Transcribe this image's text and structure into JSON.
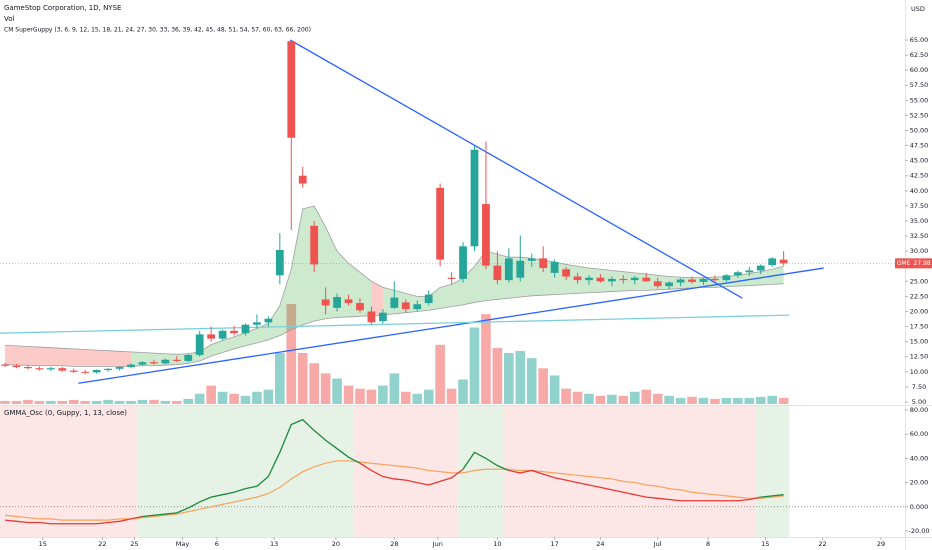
{
  "chart_data": [
    {
      "type": "candlestick",
      "title": "GameStop Corporation, 1D, NYSE",
      "subtitle": "Vol",
      "indicator": "CM SuperGuppy (3, 6, 9, 12, 15, 18, 21, 24, 27, 30, 33, 36, 39, 42, 45, 48, 51, 54, 57, 60, 63, 66, 200)",
      "currency": "USD",
      "symbol": "GME",
      "up_color": "#26a69a",
      "down_color": "#ef5350",
      "ribbon_up_color": "#4caf50",
      "ribbon_down_color": "#f44336",
      "xlim": [
        -0.44,
        78.6
      ],
      "xticks": [
        {
          "value": 3.3,
          "label": "15"
        },
        {
          "value": 8.5,
          "label": "22"
        },
        {
          "value": 11.3,
          "label": "25"
        },
        {
          "value": 15.5,
          "label": "May"
        },
        {
          "value": 18.5,
          "label": "6"
        },
        {
          "value": 23.5,
          "label": "13"
        },
        {
          "value": 28.9,
          "label": "20"
        },
        {
          "value": 34,
          "label": "28"
        },
        {
          "value": 37.8,
          "label": "Jun"
        },
        {
          "value": 43,
          "label": "10"
        },
        {
          "value": 48,
          "label": "17"
        },
        {
          "value": 52,
          "label": "24"
        },
        {
          "value": 57,
          "label": "Jul"
        },
        {
          "value": 61.4,
          "label": "8"
        },
        {
          "value": 66.4,
          "label": "15"
        },
        {
          "value": 71.4,
          "label": "22"
        },
        {
          "value": 76.5,
          "label": "29"
        }
      ],
      "ylim": [
        4.5,
        71.63
      ],
      "yticks": [
        {
          "value": 5,
          "label": "5.00"
        },
        {
          "value": 7.5,
          "label": "7.50"
        },
        {
          "value": 10,
          "label": "10.00"
        },
        {
          "value": 12.5,
          "label": "12.50"
        },
        {
          "value": 15,
          "label": "15.00"
        },
        {
          "value": 17.5,
          "label": "17.50"
        },
        {
          "value": 20,
          "label": "20.00"
        },
        {
          "value": 22.5,
          "label": "22.50"
        },
        {
          "value": 25,
          "label": "25.00"
        },
        {
          "value": 27.5,
          "label": "27.50"
        },
        {
          "value": 30,
          "label": "30.00"
        },
        {
          "value": 32.5,
          "label": "32.50"
        },
        {
          "value": 35,
          "label": "35.00"
        },
        {
          "value": 37.5,
          "label": "37.50"
        },
        {
          "value": 40,
          "label": "40.00"
        },
        {
          "value": 42.5,
          "label": "42.50"
        },
        {
          "value": 45,
          "label": "45.00"
        },
        {
          "value": 47.5,
          "label": "47.50"
        },
        {
          "value": 50,
          "label": "50.00"
        },
        {
          "value": 52.5,
          "label": "52.50"
        },
        {
          "value": 55,
          "label": "55.00"
        },
        {
          "value": 57.5,
          "label": "57.50"
        },
        {
          "value": 60,
          "label": "60.00"
        },
        {
          "value": 62.5,
          "label": "62.50"
        },
        {
          "value": 65,
          "label": "65.00"
        }
      ],
      "open": [
        11.2,
        11.0,
        10.8,
        10.6,
        10.4,
        10.6,
        10.2,
        10.0,
        9.9,
        10.3,
        10.5,
        10.8,
        11.2,
        11.6,
        11.4,
        12.0,
        11.8,
        12.8,
        16.2,
        15.5,
        16.8,
        16.4,
        17.8,
        18.2,
        26.0,
        64.8,
        42.5,
        34.2,
        22.0,
        20.6,
        22.0,
        21.4,
        20.0,
        18.4,
        20.6,
        21.5,
        20.4,
        21.4,
        40.5,
        25.6,
        25.4,
        30.8,
        37.8,
        27.6,
        25.2,
        25.6,
        28.4,
        28.8,
        26.4,
        27.0,
        25.8,
        25.2,
        25.6,
        25.0,
        25.4,
        25.2,
        25.6,
        25.0,
        24.2,
        24.8,
        25.3,
        24.9,
        25.4,
        25.2,
        26.0,
        26.5,
        26.8,
        27.7,
        28.6
      ],
      "high": [
        11.5,
        11.3,
        11.1,
        10.9,
        10.8,
        10.8,
        10.5,
        10.3,
        10.4,
        10.6,
        10.9,
        11.4,
        11.8,
        12.0,
        12.2,
        12.6,
        13.0,
        16.8,
        17.5,
        17.0,
        17.6,
        18.0,
        19.5,
        19.2,
        33.0,
        65.0,
        44.0,
        35.0,
        24.0,
        23.0,
        22.8,
        22.2,
        20.8,
        20.4,
        25.0,
        22.0,
        21.8,
        23.5,
        41.2,
        26.5,
        31.5,
        47.5,
        48.2,
        30.0,
        30.5,
        32.6,
        29.6,
        30.8,
        28.6,
        27.4,
        26.4,
        26.0,
        26.2,
        25.8,
        26.0,
        25.9,
        26.4,
        25.6,
        25.0,
        25.5,
        25.8,
        25.6,
        26.0,
        26.2,
        26.8,
        27.4,
        27.8,
        29.0,
        30.0
      ],
      "low": [
        10.8,
        10.6,
        10.4,
        10.2,
        10.1,
        10.0,
        9.8,
        9.6,
        9.7,
        10.0,
        10.2,
        10.6,
        11.0,
        11.2,
        11.2,
        11.6,
        11.6,
        12.5,
        15.0,
        15.2,
        16.0,
        16.0,
        17.2,
        17.5,
        24.5,
        33.5,
        40.5,
        26.5,
        19.5,
        20.0,
        21.0,
        19.8,
        17.8,
        18.0,
        20.4,
        19.8,
        20.0,
        21.0,
        27.5,
        24.5,
        24.8,
        30.0,
        27.0,
        24.5,
        24.8,
        25.0,
        27.4,
        26.5,
        25.6,
        25.2,
        24.6,
        24.4,
        24.8,
        24.2,
        24.6,
        24.5,
        24.9,
        23.8,
        23.6,
        24.2,
        24.6,
        24.4,
        25.0,
        24.9,
        25.6,
        25.9,
        26.2,
        27.4,
        27.6
      ],
      "close": [
        11.0,
        10.8,
        10.6,
        10.4,
        10.6,
        10.2,
        10.0,
        9.9,
        10.3,
        10.5,
        10.8,
        11.2,
        11.6,
        11.4,
        12.0,
        11.8,
        12.8,
        16.2,
        15.5,
        16.8,
        16.4,
        17.8,
        18.2,
        18.8,
        30.2,
        48.8,
        41.2,
        27.8,
        21.0,
        22.4,
        21.4,
        20.2,
        18.2,
        19.8,
        22.3,
        20.4,
        21.2,
        22.8,
        28.6,
        25.4,
        30.8,
        46.8,
        27.6,
        25.2,
        28.8,
        28.4,
        28.8,
        27.2,
        28.2,
        25.8,
        25.2,
        25.6,
        25.0,
        25.4,
        25.2,
        25.6,
        25.0,
        24.2,
        24.8,
        25.3,
        24.9,
        25.4,
        25.2,
        26.0,
        26.5,
        26.8,
        27.6,
        28.8,
        27.98
      ],
      "volume": [
        3,
        3,
        4,
        3,
        3,
        3,
        4,
        3,
        3,
        4,
        3,
        3,
        4,
        4,
        3,
        3,
        5,
        10,
        18,
        12,
        10,
        8,
        12,
        14,
        50,
        98,
        50,
        40,
        30,
        25,
        18,
        15,
        14,
        18,
        30,
        12,
        10,
        14,
        58,
        15,
        24,
        75,
        88,
        55,
        50,
        52,
        45,
        35,
        28,
        15,
        12,
        10,
        8,
        9,
        8,
        12,
        14,
        10,
        8,
        6,
        7,
        6,
        5,
        6,
        6,
        6,
        7,
        8,
        6
      ],
      "ribbon": {
        "upper": [
          14.4,
          14.3,
          14.2,
          14.1,
          14.0,
          13.9,
          13.8,
          13.7,
          13.6,
          13.5,
          13.4,
          13.3,
          13.2,
          13.1,
          13.0,
          12.9,
          13.0,
          13.3,
          14.5,
          15.2,
          15.8,
          16.5,
          17.2,
          18.0,
          21.0,
          27.0,
          37.0,
          37.5,
          34.0,
          30.0,
          28.0,
          26.5,
          25.0,
          24.0,
          23.5,
          23.0,
          22.5,
          22.5,
          24.0,
          24.5,
          25.5,
          27.5,
          30.0,
          29.5,
          29.0,
          29.0,
          28.8,
          28.5,
          28.2,
          27.8,
          27.5,
          27.2,
          27.0,
          26.8,
          26.6,
          26.4,
          26.2,
          26.0,
          25.8,
          25.7,
          25.6,
          25.6,
          25.7,
          25.8,
          26.0,
          26.3,
          26.6,
          27.0,
          27.5
        ],
        "lower": [
          11.2,
          11.1,
          11.1,
          11.0,
          11.0,
          11.0,
          10.9,
          10.9,
          10.9,
          10.9,
          10.9,
          10.9,
          11.0,
          11.0,
          11.1,
          11.2,
          11.4,
          11.8,
          12.6,
          13.2,
          13.8,
          14.3,
          14.8,
          15.3,
          16.0,
          17.0,
          17.8,
          18.4,
          18.8,
          19.0,
          19.1,
          19.2,
          19.3,
          19.4,
          19.6,
          19.8,
          20.0,
          20.2,
          20.5,
          20.8,
          21.1,
          21.5,
          21.8,
          22.0,
          22.2,
          22.4,
          22.6,
          22.7,
          22.8,
          22.9,
          23.0,
          23.1,
          23.2,
          23.3,
          23.4,
          23.5,
          23.5,
          23.6,
          23.7,
          23.8,
          23.9,
          24.0,
          24.0,
          24.1,
          24.2,
          24.3,
          24.4,
          24.5,
          24.6
        ]
      },
      "trendlines": [
        {
          "color": "#2962ff",
          "x": [
            6.4,
            71.5
          ],
          "y": [
            8.1,
            27.2
          ]
        },
        {
          "color": "#2962ff",
          "x": [
            24.9,
            64.4
          ],
          "y": [
            65.0,
            22.2
          ]
        },
        {
          "color": "#7ccfdc",
          "x": [
            -0.44,
            68.5
          ],
          "y": [
            16.4,
            19.4
          ]
        }
      ]
    },
    {
      "type": "line",
      "title": "GMMA_Osc (0, Guppy, 1, 13, close)",
      "ylim": [
        -24.96,
        84.1
      ],
      "yticks": [
        {
          "value": 80,
          "label": "80.00"
        },
        {
          "value": 60,
          "label": "60.00"
        },
        {
          "value": 40,
          "label": "40.00"
        },
        {
          "value": 20,
          "label": "20.00"
        },
        {
          "value": 0,
          "label": "0.000"
        },
        {
          "value": -20,
          "label": "-20.00"
        }
      ],
      "zero_line": true,
      "bg_colors": {
        "up": "#e6f2e6",
        "down": "#fde6e6"
      },
      "series": [
        {
          "color": "#1b8a3a",
          "down_color": "#e53935",
          "values": [
            -11,
            -12,
            -13,
            -13,
            -14,
            -14,
            -14,
            -14,
            -14,
            -13,
            -12,
            -10,
            -8,
            -7,
            -6,
            -5,
            -1,
            4,
            8,
            10,
            12,
            15,
            17,
            25,
            45,
            68,
            72,
            63,
            55,
            48,
            41,
            36,
            30,
            25,
            23,
            22,
            20,
            18,
            21,
            24,
            31,
            45,
            40,
            34,
            30,
            28,
            30,
            27,
            24,
            22,
            20,
            18,
            16,
            14,
            12,
            10,
            8,
            7,
            6,
            5,
            5,
            5,
            5,
            5,
            5,
            6,
            8,
            9,
            10
          ]
        },
        {
          "color": "#f7a35c",
          "values": [
            -7,
            -8,
            -9,
            -10,
            -10,
            -11,
            -11,
            -11,
            -11,
            -11,
            -10,
            -10,
            -9,
            -8,
            -7,
            -6,
            -4,
            -2,
            0,
            2,
            4,
            6,
            8,
            11,
            16,
            23,
            29,
            33,
            36,
            38,
            38,
            37,
            36,
            35,
            34,
            33,
            32,
            30,
            29,
            28,
            28,
            30,
            31,
            31,
            31,
            30,
            30,
            29,
            28,
            27,
            26,
            25,
            24,
            23,
            21,
            20,
            18,
            17,
            15,
            14,
            12,
            11,
            10,
            9,
            8,
            7,
            7,
            8,
            9
          ]
        }
      ]
    }
  ]
}
